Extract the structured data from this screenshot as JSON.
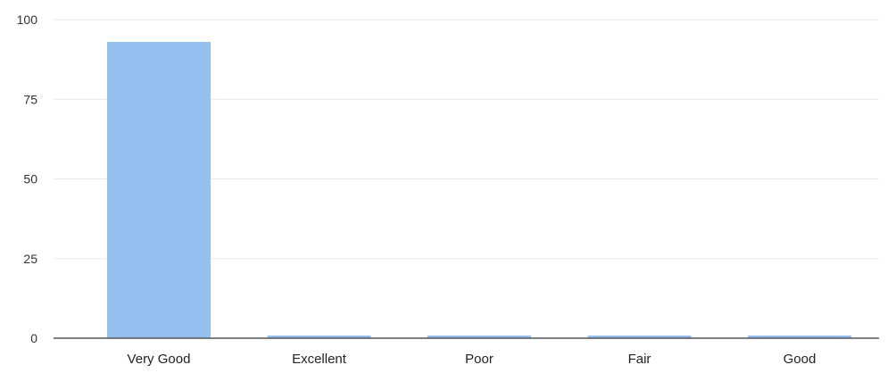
{
  "chart_data": {
    "type": "bar",
    "categories": [
      "Very Good",
      "Excellent",
      "Poor",
      "Fair",
      "Good"
    ],
    "values": [
      93,
      0.5,
      0.5,
      0.5,
      0.5
    ],
    "yticks": [
      "0",
      "25",
      "50",
      "75",
      "100"
    ],
    "ylim": [
      0,
      100
    ],
    "grid": true,
    "bar_color": "#94c0ef",
    "grid_color": "#e8e8e8",
    "axis_color": "#555555"
  }
}
